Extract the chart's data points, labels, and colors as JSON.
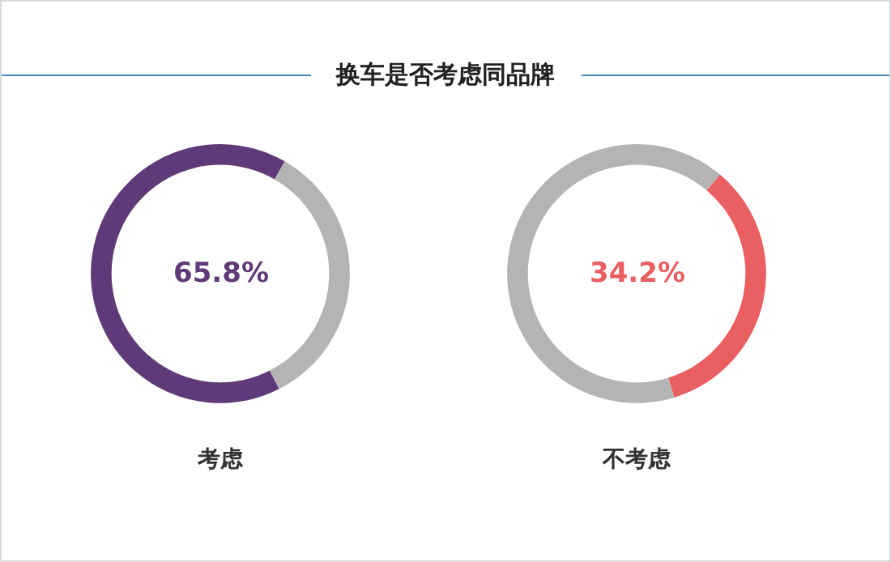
{
  "chart_data": [
    {
      "type": "donut",
      "title": "换车是否考虑同品牌",
      "xlabel": "考虑",
      "categories": [
        null,
        null
      ],
      "values": [
        65.8,
        34.2
      ],
      "colors": [
        "#5f3a78",
        "#b4b4b4"
      ],
      "annotations": [
        "65.8%"
      ]
    },
    {
      "type": "donut",
      "xlabel": "不考虑",
      "categories": [
        null,
        null
      ],
      "values": [
        34.2,
        65.8
      ],
      "colors": [
        "#e95f62",
        "#b4b4b4"
      ],
      "annotations": [
        "34.2%"
      ]
    }
  ]
}
